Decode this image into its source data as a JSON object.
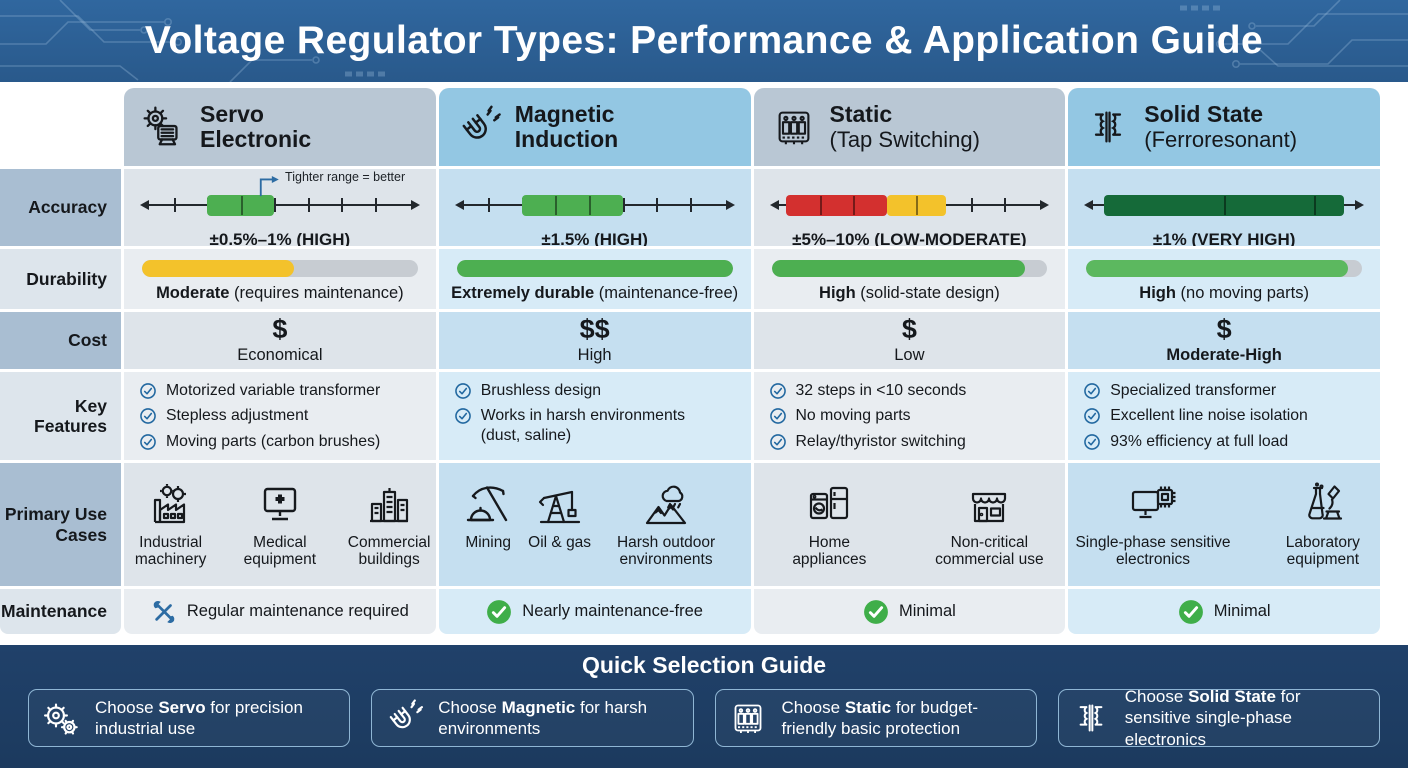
{
  "header": {
    "title": "Voltage Regulator Types: Performance & Application Guide"
  },
  "row_labels": [
    "Accuracy",
    "Durability",
    "Cost",
    "Key Features",
    "Primary Use Cases",
    "Maintenance"
  ],
  "icons": {
    "feature_check": "check-circle"
  },
  "columns": [
    {
      "header": {
        "line1": "Servo",
        "line2": "Electronic",
        "sub": "",
        "icon": "gear-motor"
      },
      "accuracy": {
        "label": "±0.5%–1% (HIGH)",
        "annotation": "Tighter range = better",
        "segments": [
          {
            "from": 24,
            "to": 48,
            "color": "#4daf51"
          }
        ],
        "dividers": [
          36
        ]
      },
      "durability": {
        "percent": 55,
        "color": "#f3c22b",
        "bold": "Moderate",
        "rest": " (requires maintenance)"
      },
      "cost": {
        "symbol": "$",
        "label": "Economical"
      },
      "features": [
        "Motorized variable transformer",
        "Stepless adjustment",
        "Moving parts (carbon brushes)"
      ],
      "use_cases": [
        {
          "icon": "factory",
          "label": "Industrial machinery"
        },
        {
          "icon": "medical",
          "label": "Medical equipment"
        },
        {
          "icon": "buildings",
          "label": "Commercial buildings"
        }
      ],
      "maintenance": {
        "icon": "tools",
        "text": "Regular maintenance required"
      }
    },
    {
      "header": {
        "line1": "Magnetic",
        "line2": "Induction",
        "sub": "",
        "icon": "magnet"
      },
      "accuracy": {
        "label": "±1.5% (HIGH)",
        "segments": [
          {
            "from": 24,
            "to": 60,
            "color": "#4daf51"
          }
        ],
        "dividers": [
          36,
          48
        ]
      },
      "durability": {
        "percent": 100,
        "color": "#4daf51",
        "bold": "Extremely durable",
        "rest": " (maintenance-free)"
      },
      "cost": {
        "symbol": "$$",
        "label": "High"
      },
      "features": [
        "Brushless design",
        "Works in harsh environments (dust, saline)"
      ],
      "use_cases": [
        {
          "icon": "mining",
          "label": "Mining"
        },
        {
          "icon": "oilgas",
          "label": "Oil & gas"
        },
        {
          "icon": "outdoor",
          "label": "Harsh outdoor environments"
        }
      ],
      "maintenance": {
        "icon": "check-green",
        "text": "Nearly maintenance-free"
      }
    },
    {
      "header": {
        "line1": "Static",
        "line2": "",
        "sub": "(Tap Switching)",
        "icon": "chip"
      },
      "accuracy": {
        "label": "±5%–10% (LOW-MODERATE)",
        "segments": [
          {
            "from": 6,
            "to": 42,
            "color": "#d3302f"
          },
          {
            "from": 42,
            "to": 63,
            "color": "#f3c22b"
          }
        ],
        "dividers": [
          18,
          30,
          52.5
        ]
      },
      "durability": {
        "percent": 92,
        "color": "#4daf51",
        "bold": "High",
        "rest": " (solid-state design)"
      },
      "cost": {
        "symbol": "$",
        "label": "Low"
      },
      "features": [
        "32 steps in <10 seconds",
        "No moving parts",
        "Relay/thyristor switching"
      ],
      "use_cases": [
        {
          "icon": "appliances",
          "label": "Home appliances"
        },
        {
          "icon": "store",
          "label": "Non-critical commercial use"
        }
      ],
      "maintenance": {
        "icon": "check-green",
        "text": "Minimal"
      }
    },
    {
      "header": {
        "line1": "Solid State",
        "line2": "",
        "sub": "(Ferroresonant)",
        "icon": "transformer"
      },
      "accuracy": {
        "label": "±1% (VERY HIGH)",
        "segments": [
          {
            "from": 7,
            "to": 93,
            "color": "#156a39"
          }
        ],
        "dividers": [
          50,
          82
        ]
      },
      "durability": {
        "percent": 95,
        "color": "#5cb85f",
        "bold": "High",
        "rest": " (no moving parts)"
      },
      "cost": {
        "symbol": "$",
        "label": "Moderate-High",
        "label_style": "font-weight:700"
      },
      "features": [
        "Specialized transformer",
        "Excellent line noise isolation",
        "93% efficiency at full load"
      ],
      "use_cases": [
        {
          "icon": "monitor-chip",
          "label": "Single-phase sensitive electronics"
        },
        {
          "icon": "lab",
          "label": "Laboratory equipment"
        }
      ],
      "maintenance": {
        "icon": "check-green",
        "text": "Minimal"
      }
    }
  ],
  "footer": {
    "title": "Quick Selection Guide",
    "cards": [
      {
        "icon": "gears",
        "pre": "Choose ",
        "bold": "Servo",
        "post": " for precision industrial use"
      },
      {
        "icon": "magnet",
        "pre": "Choose ",
        "bold": "Magnetic",
        "post": " for harsh environments"
      },
      {
        "icon": "chip",
        "pre": "Choose ",
        "bold": "Static",
        "post": " for budget-friendly basic protection"
      },
      {
        "icon": "transformer",
        "pre": "Choose ",
        "bold": "Solid State",
        "post": " for sensitive single-phase electronics"
      }
    ]
  }
}
